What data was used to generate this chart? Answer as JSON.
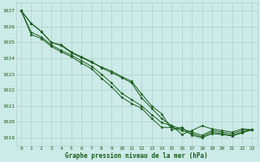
{
  "title": "Graphe pression niveau de la mer (hPa)",
  "bg_color": "#cceae7",
  "grid_color": "#b0d0cc",
  "line_color": "#1a5c1a",
  "marker": "*",
  "xlim": [
    -0.5,
    23.5
  ],
  "ylim": [
    1018.5,
    1027.5
  ],
  "yticks": [
    1019,
    1020,
    1021,
    1022,
    1023,
    1024,
    1025,
    1026,
    1027
  ],
  "xticks": [
    0,
    1,
    2,
    3,
    4,
    5,
    6,
    7,
    8,
    9,
    10,
    11,
    12,
    13,
    14,
    15,
    16,
    17,
    18,
    19,
    20,
    21,
    22,
    23
  ],
  "series": [
    [
      1027.0,
      1026.2,
      1025.7,
      1025.0,
      1024.8,
      1024.35,
      1024.05,
      1023.75,
      1023.45,
      1023.2,
      1022.85,
      1022.55,
      1021.75,
      1021.0,
      1020.5,
      1019.5,
      1019.65,
      1019.15,
      1019.0,
      1019.25,
      1019.2,
      1019.1,
      1019.3,
      1019.5
    ],
    [
      1027.0,
      1026.2,
      1025.7,
      1025.0,
      1024.85,
      1024.4,
      1024.1,
      1023.8,
      1023.4,
      1023.1,
      1022.8,
      1022.45,
      1021.5,
      1020.85,
      1020.2,
      1019.75,
      1019.2,
      1019.45,
      1019.75,
      1019.55,
      1019.45,
      1019.35,
      1019.55,
      1019.5
    ],
    [
      1027.0,
      1025.65,
      1025.35,
      1024.85,
      1024.5,
      1024.2,
      1023.85,
      1023.5,
      1023.0,
      1022.45,
      1021.8,
      1021.4,
      1021.0,
      1020.45,
      1019.95,
      1019.75,
      1019.55,
      1019.35,
      1019.15,
      1019.45,
      1019.35,
      1019.25,
      1019.45,
      1019.5
    ],
    [
      1027.0,
      1025.5,
      1025.25,
      1024.75,
      1024.4,
      1024.1,
      1023.7,
      1023.35,
      1022.75,
      1022.2,
      1021.55,
      1021.15,
      1020.85,
      1020.2,
      1019.65,
      1019.65,
      1019.45,
      1019.25,
      1019.05,
      1019.35,
      1019.25,
      1019.15,
      1019.35,
      1019.5
    ]
  ]
}
